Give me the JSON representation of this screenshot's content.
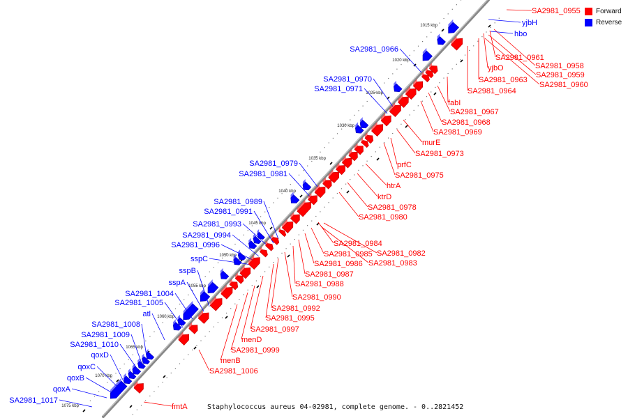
{
  "colors": {
    "forward": "#ff0000",
    "reverse": "#0000ff",
    "backbone": "#888888",
    "feature_edge_forward": "#c00000",
    "feature_edge_reverse": "#0000b0"
  },
  "legend": {
    "forward_label": "Forward",
    "reverse_label": "Reverse"
  },
  "caption": "Staphylococcus aureus 04-02981, complete genome. - 0..2821452",
  "scale_ticks": [
    "1015 kbp",
    "1020 kbp",
    "1025 kbp",
    "1030 kbp",
    "1035 kbp",
    "1040 kbp",
    "1045 kbp",
    "1050 kbp",
    "1055 kbp",
    "1060 kbp",
    "1065 kbp",
    "1070 kbp",
    "1075 kbp"
  ],
  "forward_labels": [
    "SA2981_0955",
    "SA2981_0961",
    "yjbO",
    "SA2981_0963",
    "SA2981_0958",
    "SA2981_0959",
    "SA2981_0960",
    "SA2981_0964",
    "fabI",
    "SA2981_0967",
    "SA2981_0968",
    "SA2981_0969",
    "murE",
    "SA2981_0973",
    "prfC",
    "SA2981_0975",
    "htrA",
    "ktrD",
    "SA2981_0978",
    "SA2981_0980",
    "SA2981_0984",
    "SA2981_0985",
    "SA2981_0982",
    "SA2981_0986",
    "SA2981_0983",
    "SA2981_0987",
    "SA2981_0988",
    "SA2981_0990",
    "SA2981_0992",
    "SA2981_0995",
    "SA2981_0997",
    "menD",
    "SA2981_0999",
    "menB",
    "SA2981_1006",
    "fmtA"
  ],
  "reverse_labels": [
    "yjbH",
    "hbo",
    "SA2981_0966",
    "SA2981_0970",
    "SA2981_0971",
    "SA2981_0979",
    "SA2981_0981",
    "SA2981_0989",
    "SA2981_0991",
    "SA2981_0993",
    "SA2981_0994",
    "SA2981_0996",
    "sspC",
    "sspB",
    "sspA",
    "SA2981_1004",
    "SA2981_1005",
    "atl",
    "SA2981_1008",
    "SA2981_1009",
    "SA2981_1010",
    "qoxD",
    "qoxC",
    "qoxB",
    "qoxA",
    "SA2981_1017"
  ]
}
